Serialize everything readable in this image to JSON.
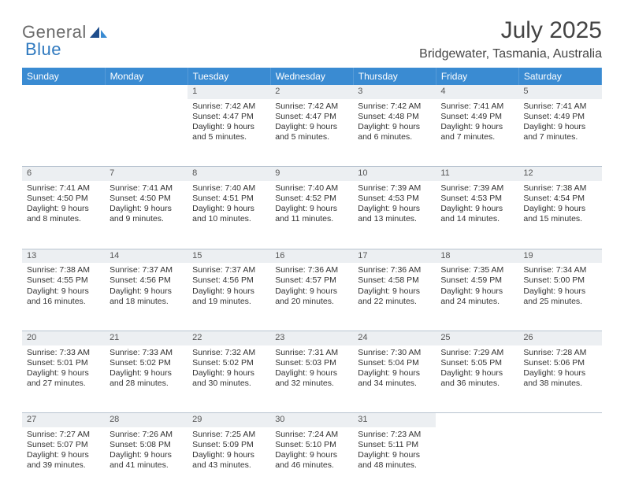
{
  "brand": {
    "part1": "General",
    "part2": "Blue"
  },
  "title": "July 2025",
  "location": "Bridgewater, Tasmania, Australia",
  "colors": {
    "header_bg": "#3a8bd2",
    "header_text": "#ffffff",
    "daynum_bg": "#eceff2",
    "daynum_text": "#555555",
    "divider": "#b7c3cf",
    "body_text": "#333333",
    "logo_gray": "#6b6b6b",
    "logo_blue": "#2f79bf",
    "page_bg": "#ffffff"
  },
  "typography": {
    "month_title_pt": 30,
    "location_pt": 16,
    "weekday_header_pt": 12,
    "daynum_pt": 11,
    "cell_pt": 10.5,
    "logo_pt": 22
  },
  "weekdays": [
    "Sunday",
    "Monday",
    "Tuesday",
    "Wednesday",
    "Thursday",
    "Friday",
    "Saturday"
  ],
  "weeks": [
    [
      null,
      null,
      {
        "n": "1",
        "sunrise": "Sunrise: 7:42 AM",
        "sunset": "Sunset: 4:47 PM",
        "day1": "Daylight: 9 hours",
        "day2": "and 5 minutes."
      },
      {
        "n": "2",
        "sunrise": "Sunrise: 7:42 AM",
        "sunset": "Sunset: 4:47 PM",
        "day1": "Daylight: 9 hours",
        "day2": "and 5 minutes."
      },
      {
        "n": "3",
        "sunrise": "Sunrise: 7:42 AM",
        "sunset": "Sunset: 4:48 PM",
        "day1": "Daylight: 9 hours",
        "day2": "and 6 minutes."
      },
      {
        "n": "4",
        "sunrise": "Sunrise: 7:41 AM",
        "sunset": "Sunset: 4:49 PM",
        "day1": "Daylight: 9 hours",
        "day2": "and 7 minutes."
      },
      {
        "n": "5",
        "sunrise": "Sunrise: 7:41 AM",
        "sunset": "Sunset: 4:49 PM",
        "day1": "Daylight: 9 hours",
        "day2": "and 7 minutes."
      }
    ],
    [
      {
        "n": "6",
        "sunrise": "Sunrise: 7:41 AM",
        "sunset": "Sunset: 4:50 PM",
        "day1": "Daylight: 9 hours",
        "day2": "and 8 minutes."
      },
      {
        "n": "7",
        "sunrise": "Sunrise: 7:41 AM",
        "sunset": "Sunset: 4:50 PM",
        "day1": "Daylight: 9 hours",
        "day2": "and 9 minutes."
      },
      {
        "n": "8",
        "sunrise": "Sunrise: 7:40 AM",
        "sunset": "Sunset: 4:51 PM",
        "day1": "Daylight: 9 hours",
        "day2": "and 10 minutes."
      },
      {
        "n": "9",
        "sunrise": "Sunrise: 7:40 AM",
        "sunset": "Sunset: 4:52 PM",
        "day1": "Daylight: 9 hours",
        "day2": "and 11 minutes."
      },
      {
        "n": "10",
        "sunrise": "Sunrise: 7:39 AM",
        "sunset": "Sunset: 4:53 PM",
        "day1": "Daylight: 9 hours",
        "day2": "and 13 minutes."
      },
      {
        "n": "11",
        "sunrise": "Sunrise: 7:39 AM",
        "sunset": "Sunset: 4:53 PM",
        "day1": "Daylight: 9 hours",
        "day2": "and 14 minutes."
      },
      {
        "n": "12",
        "sunrise": "Sunrise: 7:38 AM",
        "sunset": "Sunset: 4:54 PM",
        "day1": "Daylight: 9 hours",
        "day2": "and 15 minutes."
      }
    ],
    [
      {
        "n": "13",
        "sunrise": "Sunrise: 7:38 AM",
        "sunset": "Sunset: 4:55 PM",
        "day1": "Daylight: 9 hours",
        "day2": "and 16 minutes."
      },
      {
        "n": "14",
        "sunrise": "Sunrise: 7:37 AM",
        "sunset": "Sunset: 4:56 PM",
        "day1": "Daylight: 9 hours",
        "day2": "and 18 minutes."
      },
      {
        "n": "15",
        "sunrise": "Sunrise: 7:37 AM",
        "sunset": "Sunset: 4:56 PM",
        "day1": "Daylight: 9 hours",
        "day2": "and 19 minutes."
      },
      {
        "n": "16",
        "sunrise": "Sunrise: 7:36 AM",
        "sunset": "Sunset: 4:57 PM",
        "day1": "Daylight: 9 hours",
        "day2": "and 20 minutes."
      },
      {
        "n": "17",
        "sunrise": "Sunrise: 7:36 AM",
        "sunset": "Sunset: 4:58 PM",
        "day1": "Daylight: 9 hours",
        "day2": "and 22 minutes."
      },
      {
        "n": "18",
        "sunrise": "Sunrise: 7:35 AM",
        "sunset": "Sunset: 4:59 PM",
        "day1": "Daylight: 9 hours",
        "day2": "and 24 minutes."
      },
      {
        "n": "19",
        "sunrise": "Sunrise: 7:34 AM",
        "sunset": "Sunset: 5:00 PM",
        "day1": "Daylight: 9 hours",
        "day2": "and 25 minutes."
      }
    ],
    [
      {
        "n": "20",
        "sunrise": "Sunrise: 7:33 AM",
        "sunset": "Sunset: 5:01 PM",
        "day1": "Daylight: 9 hours",
        "day2": "and 27 minutes."
      },
      {
        "n": "21",
        "sunrise": "Sunrise: 7:33 AM",
        "sunset": "Sunset: 5:02 PM",
        "day1": "Daylight: 9 hours",
        "day2": "and 28 minutes."
      },
      {
        "n": "22",
        "sunrise": "Sunrise: 7:32 AM",
        "sunset": "Sunset: 5:02 PM",
        "day1": "Daylight: 9 hours",
        "day2": "and 30 minutes."
      },
      {
        "n": "23",
        "sunrise": "Sunrise: 7:31 AM",
        "sunset": "Sunset: 5:03 PM",
        "day1": "Daylight: 9 hours",
        "day2": "and 32 minutes."
      },
      {
        "n": "24",
        "sunrise": "Sunrise: 7:30 AM",
        "sunset": "Sunset: 5:04 PM",
        "day1": "Daylight: 9 hours",
        "day2": "and 34 minutes."
      },
      {
        "n": "25",
        "sunrise": "Sunrise: 7:29 AM",
        "sunset": "Sunset: 5:05 PM",
        "day1": "Daylight: 9 hours",
        "day2": "and 36 minutes."
      },
      {
        "n": "26",
        "sunrise": "Sunrise: 7:28 AM",
        "sunset": "Sunset: 5:06 PM",
        "day1": "Daylight: 9 hours",
        "day2": "and 38 minutes."
      }
    ],
    [
      {
        "n": "27",
        "sunrise": "Sunrise: 7:27 AM",
        "sunset": "Sunset: 5:07 PM",
        "day1": "Daylight: 9 hours",
        "day2": "and 39 minutes."
      },
      {
        "n": "28",
        "sunrise": "Sunrise: 7:26 AM",
        "sunset": "Sunset: 5:08 PM",
        "day1": "Daylight: 9 hours",
        "day2": "and 41 minutes."
      },
      {
        "n": "29",
        "sunrise": "Sunrise: 7:25 AM",
        "sunset": "Sunset: 5:09 PM",
        "day1": "Daylight: 9 hours",
        "day2": "and 43 minutes."
      },
      {
        "n": "30",
        "sunrise": "Sunrise: 7:24 AM",
        "sunset": "Sunset: 5:10 PM",
        "day1": "Daylight: 9 hours",
        "day2": "and 46 minutes."
      },
      {
        "n": "31",
        "sunrise": "Sunrise: 7:23 AM",
        "sunset": "Sunset: 5:11 PM",
        "day1": "Daylight: 9 hours",
        "day2": "and 48 minutes."
      },
      null,
      null
    ]
  ]
}
